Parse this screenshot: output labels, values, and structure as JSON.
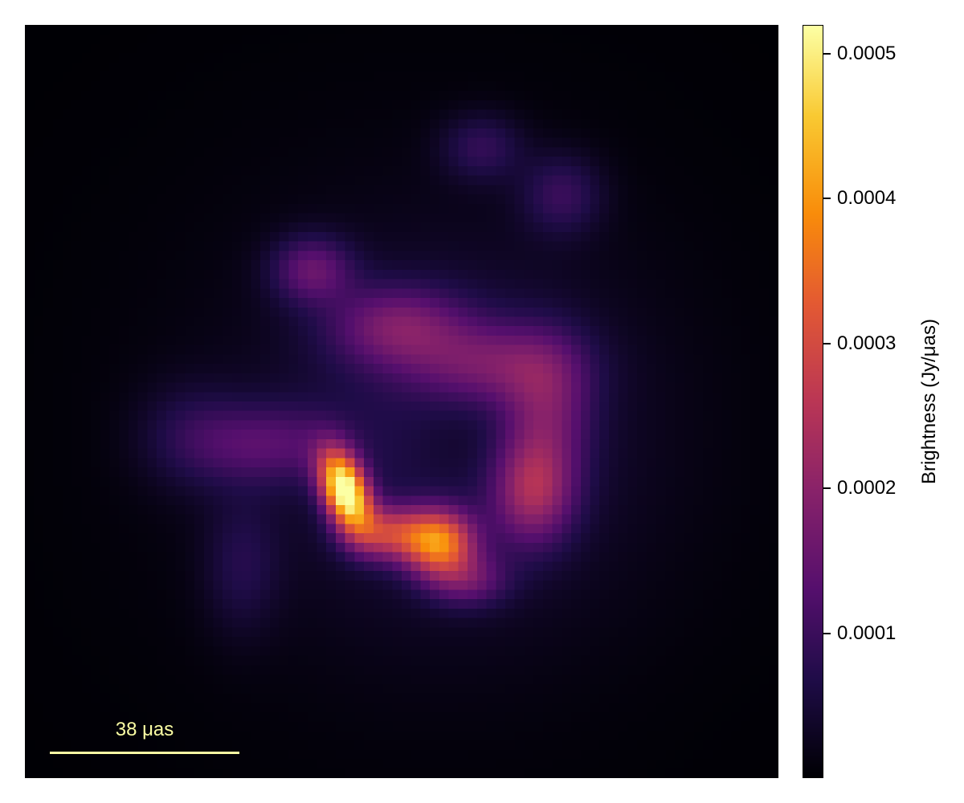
{
  "image": {
    "description_free": true,
    "colormap": "inferno",
    "colors": {
      "background": "#020208",
      "low": "#000004",
      "mid_low": "#420a68",
      "mid": "#932667",
      "mid_high": "#dd513a",
      "high": "#fca50a",
      "peak": "#fcffa4"
    }
  },
  "scale_bar": {
    "label": "38 μas",
    "color": "#fcfea4"
  },
  "colorbar": {
    "title": "Brightness (Jy/μas)",
    "min": 0.0,
    "max": 0.00052,
    "ticks": [
      {
        "label": "0.0005",
        "value": 0.0005
      },
      {
        "label": "0.0004",
        "value": 0.0004
      },
      {
        "label": "0.0003",
        "value": 0.0003
      },
      {
        "label": "0.0002",
        "value": 0.0002
      },
      {
        "label": "0.0001",
        "value": 0.0001
      }
    ]
  }
}
